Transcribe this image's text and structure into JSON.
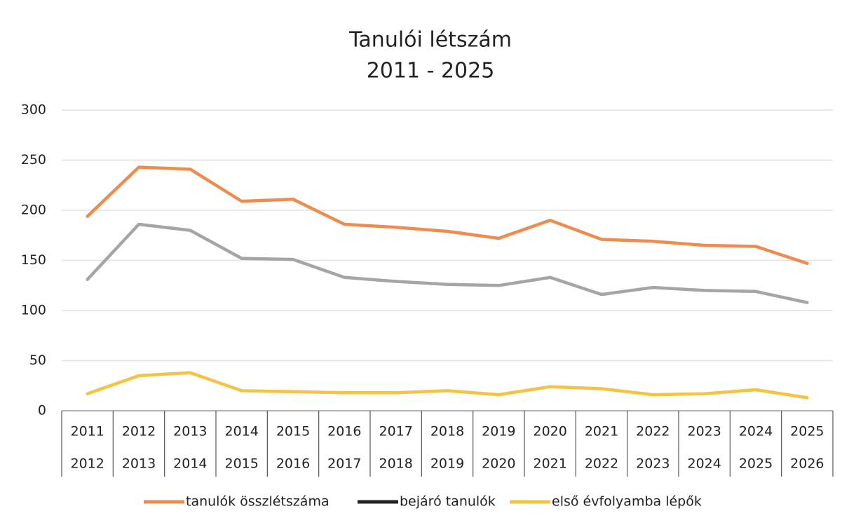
{
  "chart_data": {
    "type": "line",
    "title": "Tanulói létszám",
    "subtitle": "2011 - 2025",
    "categories": [
      [
        "2011",
        "2012"
      ],
      [
        "2012",
        "2013"
      ],
      [
        "2013",
        "2014"
      ],
      [
        "2014",
        "2015"
      ],
      [
        "2015",
        "2016"
      ],
      [
        "2016",
        "2017"
      ],
      [
        "2017",
        "2018"
      ],
      [
        "2018",
        "2019"
      ],
      [
        "2019",
        "2020"
      ],
      [
        "2020",
        "2021"
      ],
      [
        "2021",
        "2022"
      ],
      [
        "2022",
        "2023"
      ],
      [
        "2023",
        "2024"
      ],
      [
        "2024",
        "2025"
      ],
      [
        "2025",
        "2026"
      ]
    ],
    "series": [
      {
        "name": "tanulók összlétszáma",
        "color": "#ed8c4e",
        "legend_color": "#ed8c4e",
        "values": [
          194,
          243,
          241,
          209,
          211,
          186,
          183,
          179,
          172,
          190,
          171,
          169,
          165,
          164,
          147
        ]
      },
      {
        "name": "bejáró tanulók",
        "color": "#a5a5a5",
        "legend_color": "#222222",
        "values": [
          131,
          186,
          180,
          152,
          151,
          133,
          129,
          126,
          125,
          133,
          116,
          123,
          120,
          119,
          108
        ]
      },
      {
        "name": "első évfolyamba lépők",
        "color": "#f5c242",
        "legend_color": "#f5c242",
        "values": [
          17,
          35,
          38,
          20,
          19,
          18,
          18,
          20,
          16,
          24,
          22,
          16,
          17,
          21,
          13
        ]
      }
    ],
    "ylim": [
      0,
      300
    ],
    "yticks": [
      0,
      50,
      100,
      150,
      200,
      250,
      300
    ],
    "grid": true,
    "legend": "bottom"
  }
}
